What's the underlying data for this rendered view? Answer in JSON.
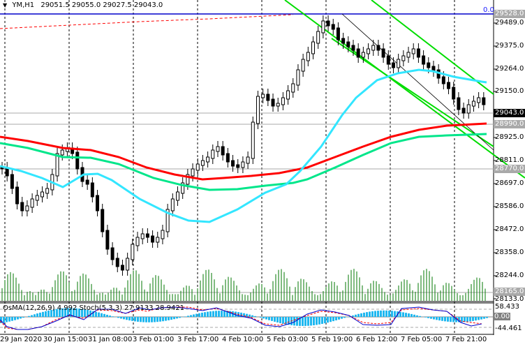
{
  "header": {
    "symbol_timeframe": "YM,H1",
    "ohlc": "29051.5 29055.0 29027.5 29043.0",
    "dropdown_icon": "triangle-down-icon"
  },
  "fibo_label": "0.0",
  "price_axis": {
    "ticks": [
      "29489.0",
      "29375.0",
      "29264.0",
      "29150.0",
      "28925.0",
      "28811.0",
      "28697.0",
      "28586.0",
      "28472.0",
      "28358.0",
      "28244.0",
      "28133.0"
    ],
    "highlighted_levels": [
      {
        "label": "29528.0",
        "type": "level"
      },
      {
        "label": "29043.0",
        "type": "current"
      },
      {
        "label": "28990.0",
        "type": "level"
      },
      {
        "label": "28770.0",
        "type": "level"
      },
      {
        "label": "28165.0",
        "type": "level"
      }
    ]
  },
  "time_axis": {
    "ticks": [
      "29 Jan 2020",
      "30 Jan 15:00",
      "31 Jan 08:00",
      "3 Feb 01:00",
      "3 Feb 17:00",
      "4 Feb 10:00",
      "5 Feb 03:00",
      "5 Feb 19:00",
      "6 Feb 12:00",
      "7 Feb 05:00",
      "7 Feb 21:00"
    ]
  },
  "subwindow": {
    "title": "OsMA(12,26,9) 4.992 Stoch(5,3,3) 27.9133 28.9421",
    "axis": {
      "top": "58.433",
      "top_overlay": "80",
      "zero": "0.00",
      "bottom": "-44.461",
      "bottom_overlay": "20"
    }
  },
  "colors": {
    "ema_slow": "#ff0000",
    "ema_mid": "#00e68a",
    "ema_fast": "#33e6ff",
    "channel": "#00dd00",
    "volume": "#007700",
    "osma": "#1fb8f0",
    "stoch_main": "#0000cc",
    "stoch_signal": "#ff0000",
    "level_line": "#a9a9a9",
    "fibo_line": "#0000cc"
  },
  "chart_data": {
    "type": "candlestick",
    "title": "YM,H1",
    "ohlc_last": {
      "open": 29051.5,
      "high": 29055.0,
      "low": 29027.5,
      "close": 29043.0
    },
    "ylim": [
      28110,
      29560
    ],
    "x_ticks": [
      "29 Jan 2020",
      "30 Jan 15:00",
      "31 Jan 08:00",
      "3 Feb 01:00",
      "3 Feb 17:00",
      "4 Feb 10:00",
      "5 Feb 03:00",
      "5 Feb 19:00",
      "6 Feb 12:00",
      "7 Feb 05:00",
      "7 Feb 21:00"
    ],
    "horizontal_levels": [
      29528.0,
      29043.0,
      28990.0,
      28770.0,
      28165.0
    ],
    "moving_averages": [
      {
        "name": "EMA slow (red)",
        "approx_points": [
          [
            0,
            28910
          ],
          [
            130,
            28840
          ],
          [
            300,
            28700
          ],
          [
            450,
            28780
          ],
          [
            600,
            28930
          ],
          [
            697,
            28965
          ]
        ]
      },
      {
        "name": "EMA mid (green)",
        "approx_points": [
          [
            0,
            28890
          ],
          [
            130,
            28800
          ],
          [
            300,
            28650
          ],
          [
            450,
            28700
          ],
          [
            600,
            28960
          ],
          [
            697,
            29020
          ]
        ]
      },
      {
        "name": "EMA fast (cyan)",
        "approx_points": [
          [
            0,
            28770
          ],
          [
            90,
            28660
          ],
          [
            130,
            28690
          ],
          [
            260,
            28500
          ],
          [
            400,
            28660
          ],
          [
            500,
            29120
          ],
          [
            600,
            29250
          ],
          [
            697,
            29160
          ]
        ]
      }
    ],
    "indicators": [
      {
        "name": "OsMA(12,26,9)",
        "value": 4.992
      },
      {
        "name": "Stoch(5,3,3)",
        "main": 27.9133,
        "signal": 28.9421
      }
    ],
    "subwindow_range": [
      -44.461,
      58.433
    ]
  }
}
